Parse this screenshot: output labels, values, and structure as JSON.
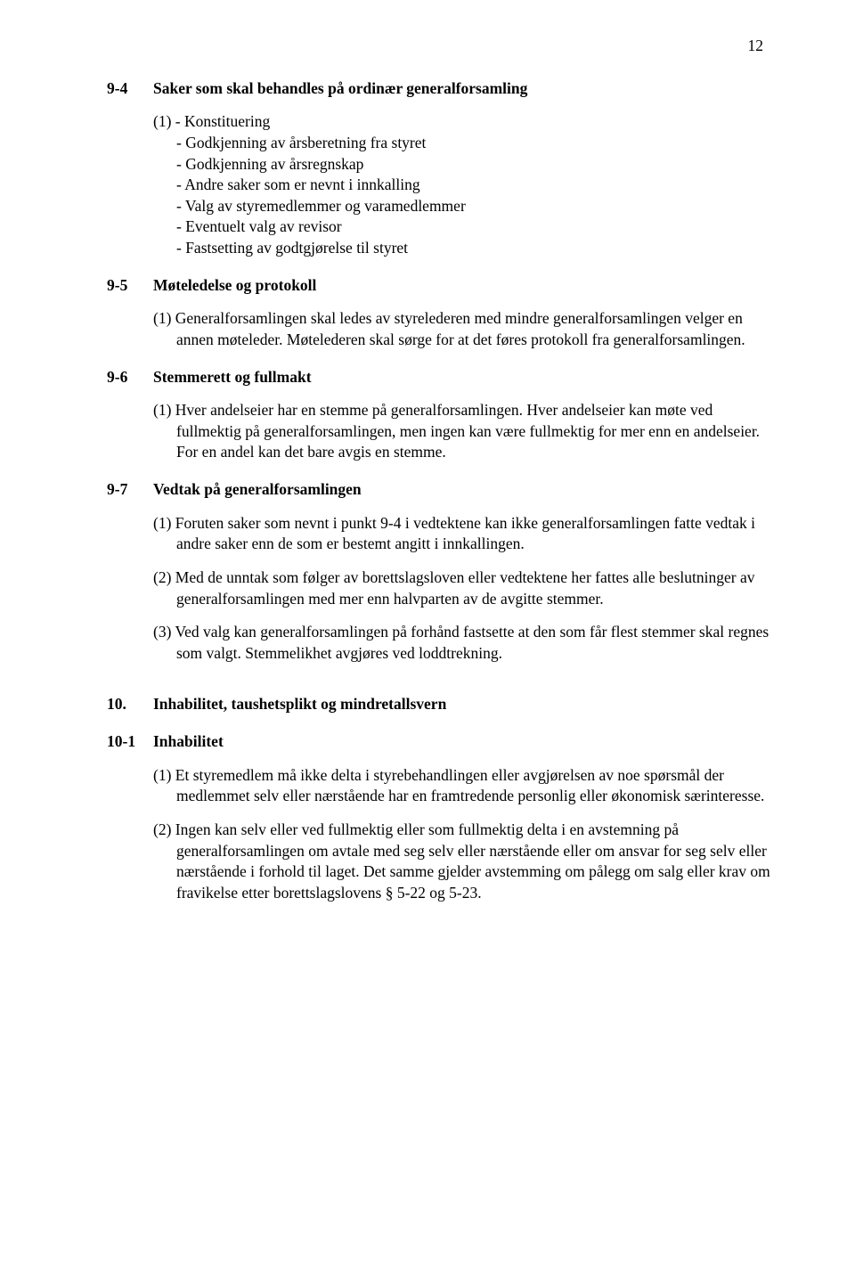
{
  "page_number": "12",
  "sections": [
    {
      "num": "9-4",
      "title": "Saker som skal behandles på ordinær generalforsamling",
      "items_prefix": "(1)",
      "items": [
        "- Konstituering",
        "- Godkjenning av årsberetning fra styret",
        "- Godkjenning av årsregnskap",
        "- Andre saker som er nevnt i innkalling",
        "- Valg av styremedlemmer og varamedlemmer",
        "- Eventuelt valg av revisor",
        "- Fastsetting av godtgjørelse til styret"
      ]
    },
    {
      "num": "9-5",
      "title": "Møteledelse og protokoll",
      "paras": [
        "(1) Generalforsamlingen skal ledes av styrelederen med mindre generalforsamlingen velger en annen møteleder. Møtelederen skal sørge for at det føres protokoll fra generalforsamlingen."
      ]
    },
    {
      "num": "9-6",
      "title": "Stemmerett og fullmakt",
      "paras": [
        "(1) Hver andelseier har en stemme på generalforsamlingen. Hver andelseier kan møte ved fullmektig på generalforsamlingen, men ingen kan være fullmektig for mer enn en andelseier. For en andel kan det bare avgis en stemme."
      ]
    },
    {
      "num": "9-7",
      "title": "Vedtak på generalforsamlingen",
      "paras": [
        "(1) Foruten saker som nevnt i punkt 9-4 i vedtektene kan ikke generalforsamlingen fatte vedtak i andre saker enn de som er bestemt angitt i innkallingen.",
        "(2) Med de unntak som følger av borettslagsloven eller vedtektene her fattes alle beslutninger av generalforsamlingen med mer enn halvparten av de avgitte stemmer.",
        "(3) Ved valg kan generalforsamlingen på forhånd fastsette at den som får flest stemmer skal regnes som valgt. Stemmelikhet avgjøres ved loddtrekning."
      ]
    }
  ],
  "chapter": {
    "num": "10.",
    "title": "Inhabilitet, taushetsplikt og mindretallsvern"
  },
  "sub_sections": [
    {
      "num": "10-1",
      "title": "Inhabilitet",
      "paras": [
        "(1) Et styremedlem må ikke delta i styrebehandlingen eller avgjørelsen av noe spørsmål der medlemmet selv eller nærstående har en framtredende personlig eller økonomisk særinteresse.",
        "(2) Ingen kan selv eller ved fullmektig eller som fullmektig delta i en avstemning på generalforsamlingen om avtale med seg selv eller nærstående eller om ansvar for seg selv eller nærstående i forhold til laget. Det samme gjelder avstemming om pålegg om salg eller krav om fravikelse etter borettslagslovens § 5-22 og 5-23."
      ]
    }
  ]
}
